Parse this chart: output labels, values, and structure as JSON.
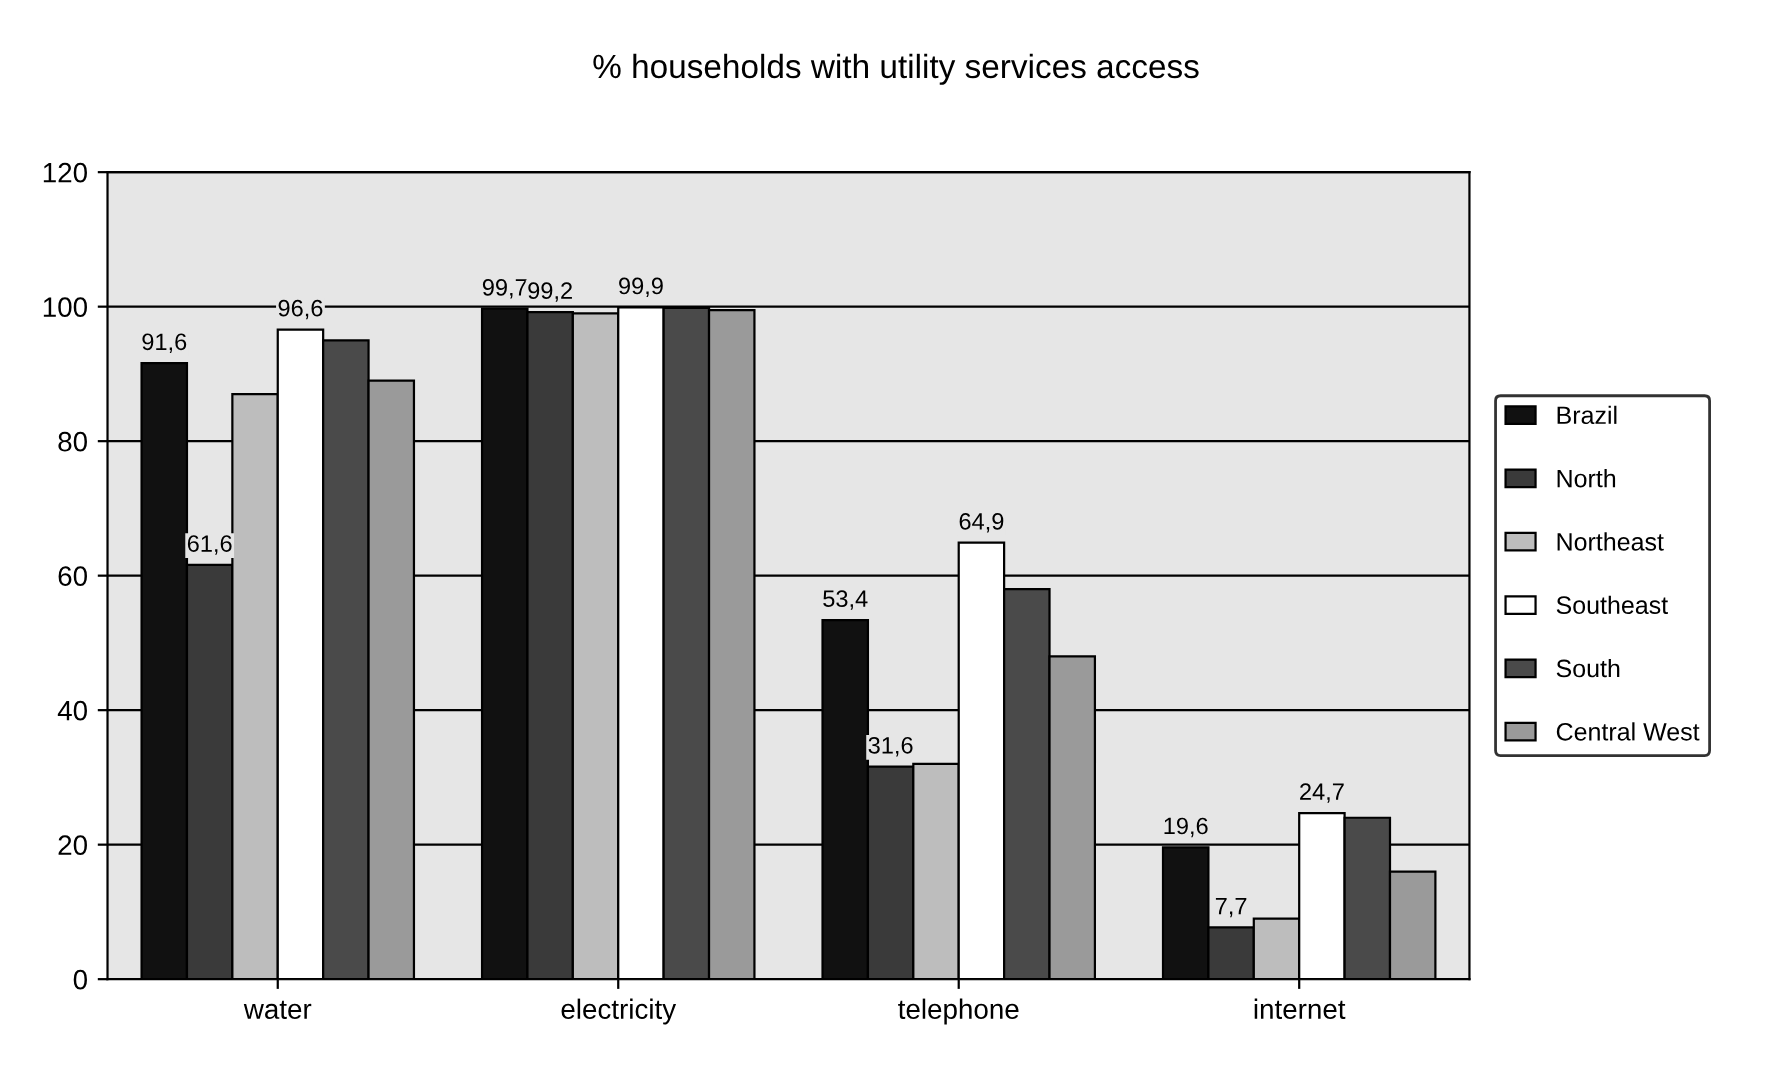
{
  "chart_data": {
    "type": "bar",
    "title": "% households with utility services access",
    "categories": [
      "water",
      "electricity",
      "telephone",
      "internet"
    ],
    "series": [
      {
        "name": "Brazil",
        "color": "#111111",
        "values": [
          91.6,
          99.7,
          53.4,
          19.6
        ],
        "value_labels": [
          "91,6",
          "99,7",
          "53,4",
          "19,6"
        ]
      },
      {
        "name": "North",
        "color": "#3a3a3a",
        "values": [
          61.6,
          99.2,
          31.6,
          7.7
        ],
        "value_labels": [
          "61,6",
          "99,2",
          "31,6",
          "7,7"
        ]
      },
      {
        "name": "Northeast",
        "color": "#bdbdbd",
        "values": [
          87,
          99,
          32,
          9
        ],
        "value_labels": [
          null,
          null,
          null,
          null
        ]
      },
      {
        "name": "Southeast",
        "color": "#ffffff",
        "values": [
          96.6,
          99.9,
          64.9,
          24.7
        ],
        "value_labels": [
          "96,6",
          "99,9",
          "64,9",
          "24,7"
        ]
      },
      {
        "name": "South",
        "color": "#4a4a4a",
        "values": [
          95,
          99.8,
          58,
          24
        ],
        "value_labels": [
          null,
          null,
          null,
          null
        ]
      },
      {
        "name": "Central West",
        "color": "#9a9a9a",
        "values": [
          89,
          99.5,
          48,
          16
        ],
        "value_labels": [
          null,
          null,
          null,
          null
        ]
      }
    ],
    "ylim": [
      0,
      120
    ],
    "yticks": [
      0,
      20,
      40,
      60,
      80,
      100,
      120
    ],
    "grid": "y",
    "legend": "right"
  }
}
